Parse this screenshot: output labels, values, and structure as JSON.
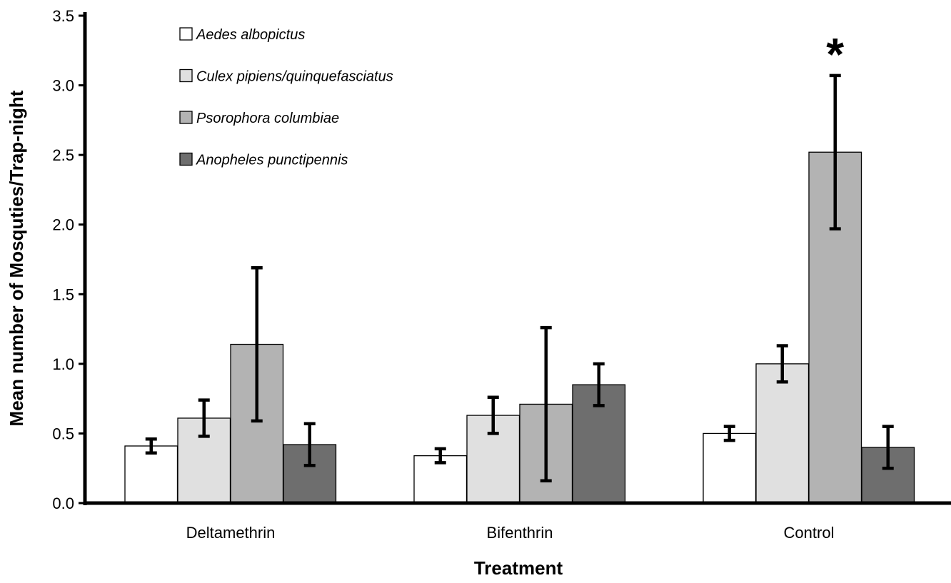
{
  "chart_data": {
    "type": "bar",
    "title": "",
    "xlabel": "Treatment",
    "ylabel": "Mean number of Mosquties/Trap-night",
    "ylim": [
      0,
      3.5
    ],
    "ytick_values": [
      0,
      0.5,
      1,
      1.5,
      2,
      2.5,
      3,
      3.5
    ],
    "ytick_labels": [
      "0.0",
      "0.5",
      "1.0",
      "1.5",
      "2.0",
      "2.5",
      "3.0",
      "3.5"
    ],
    "categories": [
      "Deltamethrin",
      "Bifenthrin",
      "Control"
    ],
    "grid": false,
    "legend_position": "top-left",
    "series": [
      {
        "name": "Aedes albopictus",
        "color": "#ffffff",
        "values": [
          0.41,
          0.34,
          0.5
        ],
        "error": [
          0.05,
          0.05,
          0.05
        ]
      },
      {
        "name": "Culex pipiens/quinquefasciatus",
        "color": "#e0e0e0",
        "values": [
          0.61,
          0.63,
          1.0
        ],
        "error": [
          0.13,
          0.13,
          0.13
        ]
      },
      {
        "name": "Psorophora columbiae",
        "color": "#b3b3b3",
        "values": [
          1.14,
          0.71,
          2.52
        ],
        "error": [
          0.55,
          0.55,
          0.55
        ]
      },
      {
        "name": "Anopheles punctipennis",
        "color": "#6e6e6e",
        "values": [
          0.42,
          0.85,
          0.4
        ],
        "error": [
          0.15,
          0.15,
          0.15
        ]
      }
    ],
    "annotations": [
      {
        "text": "*",
        "category": "Control",
        "series": "Psorophora columbiae"
      }
    ]
  }
}
